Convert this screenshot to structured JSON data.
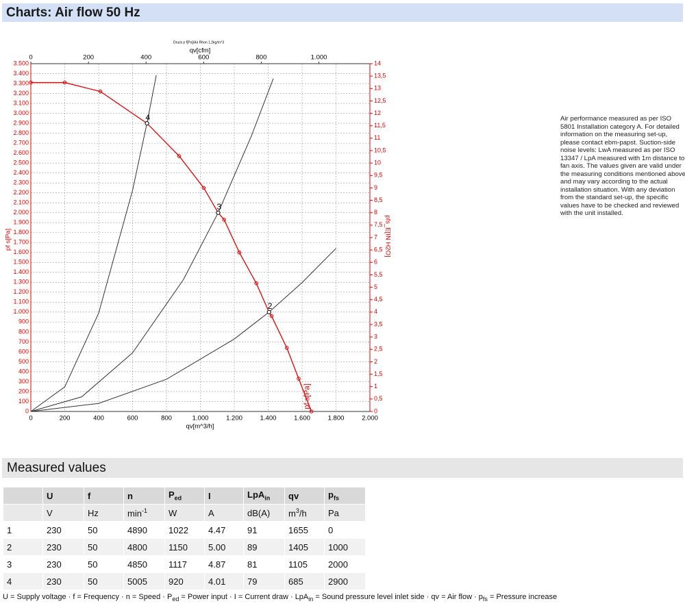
{
  "header": {
    "title": "Charts: Air flow 50 Hz"
  },
  "chart_data": {
    "type": "line",
    "title": "Druck p f[Pa]/Air Rhon 1,2kg/m^3",
    "xlabel": "qv[m^3/h]",
    "x2label": "qv[cfm]",
    "ylabel": "pf s[Pa]",
    "y2label": "pfs_E[IN H2O]",
    "curve_label": "pf s[Pa]",
    "xlim": [
      0,
      2000
    ],
    "xticks": [
      0,
      200,
      400,
      600,
      800,
      {
        "value": 1000,
        "label": "1.000"
      },
      {
        "value": 1200,
        "label": "1.200"
      },
      {
        "value": 1400,
        "label": "1.400"
      },
      {
        "value": 1600,
        "label": "1.600"
      },
      {
        "value": 1800,
        "label": "1.800"
      },
      {
        "value": 2000,
        "label": "2.000"
      }
    ],
    "x2lim": [
      0,
      1177
    ],
    "x2ticks": [
      0,
      200,
      400,
      600,
      800,
      {
        "value": 1000,
        "label": "1.000"
      }
    ],
    "ylim": [
      0,
      3500
    ],
    "yticks": [
      0,
      100,
      200,
      300,
      400,
      500,
      600,
      700,
      800,
      900,
      {
        "value": 1000,
        "label": "1.000"
      },
      {
        "value": 1100,
        "label": "1.100"
      },
      {
        "value": 1200,
        "label": "1.200"
      },
      {
        "value": 1300,
        "label": "1.300"
      },
      {
        "value": 1400,
        "label": "1.400"
      },
      {
        "value": 1500,
        "label": "1.500"
      },
      {
        "value": 1600,
        "label": "1.600"
      },
      {
        "value": 1700,
        "label": "1.700"
      },
      {
        "value": 1800,
        "label": "1.800"
      },
      {
        "value": 1900,
        "label": "1.900"
      },
      {
        "value": 2000,
        "label": "2.000"
      },
      {
        "value": 2100,
        "label": "2.100"
      },
      {
        "value": 2200,
        "label": "2.200"
      },
      {
        "value": 2300,
        "label": "2.300"
      },
      {
        "value": 2400,
        "label": "2.400"
      },
      {
        "value": 2500,
        "label": "2.500"
      },
      {
        "value": 2600,
        "label": "2.600"
      },
      {
        "value": 2700,
        "label": "2.700"
      },
      {
        "value": 2800,
        "label": "2.800"
      },
      {
        "value": 2900,
        "label": "2.900"
      },
      {
        "value": 3000,
        "label": "3.000"
      },
      {
        "value": 3100,
        "label": "3.100"
      },
      {
        "value": 3200,
        "label": "3.200"
      },
      {
        "value": 3300,
        "label": "3.300"
      },
      {
        "value": 3400,
        "label": "3.400"
      },
      {
        "value": 3500,
        "label": "3.500"
      }
    ],
    "y2lim": [
      0,
      14
    ],
    "y2ticks": [
      0,
      {
        "value": 0.5,
        "label": "0,5"
      },
      1,
      {
        "value": 1.5,
        "label": "1,5"
      },
      2,
      {
        "value": 2.5,
        "label": "2,5"
      },
      3,
      {
        "value": 3.5,
        "label": "3,5"
      },
      4,
      {
        "value": 4.5,
        "label": "4,5"
      },
      5,
      {
        "value": 5.5,
        "label": "5,5"
      },
      6,
      {
        "value": 6.5,
        "label": "6,5"
      },
      7,
      {
        "value": 7.5,
        "label": "7,5"
      },
      8,
      {
        "value": 8.5,
        "label": "8,5"
      },
      9,
      {
        "value": 9.5,
        "label": "9,5"
      },
      10,
      {
        "value": 10.5,
        "label": "10,5"
      },
      11,
      {
        "value": 11.5,
        "label": "11,5"
      },
      12,
      {
        "value": 12.5,
        "label": "12,5"
      },
      13,
      {
        "value": 13.5,
        "label": "13,5"
      },
      14
    ],
    "grid": true,
    "series": [
      {
        "color": "#e60000",
        "markers": true,
        "x": [
          0,
          200,
          410,
          685,
          875,
          1020,
          1105,
          1140,
          1230,
          1330,
          1405,
          1420,
          1510,
          1580,
          1655
        ],
        "values": [
          3310,
          3310,
          3220,
          2900,
          2570,
          2250,
          2000,
          1930,
          1600,
          1290,
          1000,
          960,
          640,
          330,
          0
        ]
      },
      {
        "color": "#333333",
        "markers": false,
        "x": [
          0,
          200,
          400,
          600,
          685,
          740
        ],
        "values": [
          0,
          247,
          989,
          2225,
          2900,
          3384
        ]
      },
      {
        "color": "#333333",
        "markers": false,
        "x": [
          0,
          300,
          600,
          900,
          1105,
          1300,
          1430
        ],
        "values": [
          0,
          147,
          590,
          1327,
          2000,
          2768,
          3349
        ]
      },
      {
        "color": "#333333",
        "markers": false,
        "x": [
          0,
          400,
          800,
          1200,
          1405,
          1600,
          1800
        ],
        "values": [
          0,
          81,
          324,
          729,
          1000,
          1297,
          1641
        ]
      }
    ],
    "annotations": [
      {
        "text": "4",
        "x": 685,
        "y": 2900
      },
      {
        "text": "3",
        "x": 1105,
        "y": 2000
      },
      {
        "text": "2",
        "x": 1405,
        "y": 1000
      }
    ]
  },
  "notes": "Air performance measured as per ISO 5801 Installation category A. For detailed information on the measuring set-up, please contact ebm-papst. Suction-side noise levels: LwA measured as per ISO 13347 / LpA measured with 1m distance to fan axis. The values given are valid under the measuring conditions mentioned above and may vary according to the actual installation situation. With any deviation from the standard set-up, the specific values have to be checked and reviewed with the unit installed.",
  "section": {
    "title": "Measured values"
  },
  "table": {
    "header": [
      {
        "text": ""
      },
      {
        "text": "U"
      },
      {
        "text": "f"
      },
      {
        "text": "n"
      },
      {
        "text": "P",
        "sub": "ed"
      },
      {
        "text": "I"
      },
      {
        "text": "LpA",
        "sub": "in"
      },
      {
        "text": "qv"
      },
      {
        "text": "p",
        "sub": "fs"
      }
    ],
    "units": [
      {
        "text": ""
      },
      {
        "text": "V"
      },
      {
        "text": "Hz"
      },
      {
        "text": "min",
        "sup": "-1"
      },
      {
        "text": "W"
      },
      {
        "text": "A"
      },
      {
        "text": "dB(A)"
      },
      {
        "text": "m",
        "sup": "3",
        "after": "/h"
      },
      {
        "text": "Pa"
      }
    ],
    "rows": [
      [
        "1",
        "230",
        "50",
        "4890",
        "1022",
        "4.47",
        "91",
        "1655",
        "0"
      ],
      [
        "2",
        "230",
        "50",
        "4800",
        "1150",
        "5.00",
        "89",
        "1405",
        "1000"
      ],
      [
        "3",
        "230",
        "50",
        "4850",
        "1117",
        "4.87",
        "81",
        "1105",
        "2000"
      ],
      [
        "4",
        "230",
        "50",
        "5005",
        "920",
        "4.01",
        "79",
        "685",
        "2900"
      ]
    ]
  },
  "footer": [
    {
      "text": "U = Supply voltage · f = Frequency · n = Speed · P"
    },
    {
      "sub": "ed"
    },
    {
      "text": " = Power input · I = Current draw · LpA"
    },
    {
      "sub": "in"
    },
    {
      "text": " = Sound pressure level inlet side · qv = Air flow · p"
    },
    {
      "sub": "fs"
    },
    {
      "text": " = Pressure increase"
    }
  ]
}
